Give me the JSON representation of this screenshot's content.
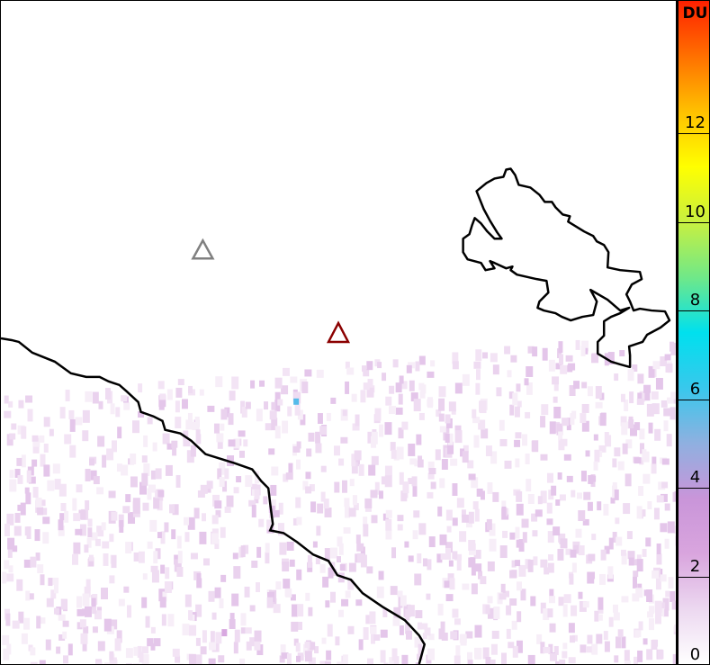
{
  "map": {
    "markers": [
      {
        "name": "gray-triangle",
        "color": "#808080"
      },
      {
        "name": "darkred-triangle",
        "color": "#8b0000"
      }
    ],
    "outline_color": "#000000"
  },
  "colorbar": {
    "unit": "DU",
    "range": [
      0,
      15
    ],
    "ticks": [
      "0",
      "2",
      "4",
      "6",
      "8",
      "10",
      "12"
    ],
    "colors": [
      "#ffffff",
      "#ecd8f0",
      "#d9a5de",
      "#c995d9",
      "#8fb0e0",
      "#38c8ec",
      "#00e0ee",
      "#70e888",
      "#c8f040",
      "#ffff00",
      "#ffc000",
      "#ff7000",
      "#ff2000"
    ]
  }
}
